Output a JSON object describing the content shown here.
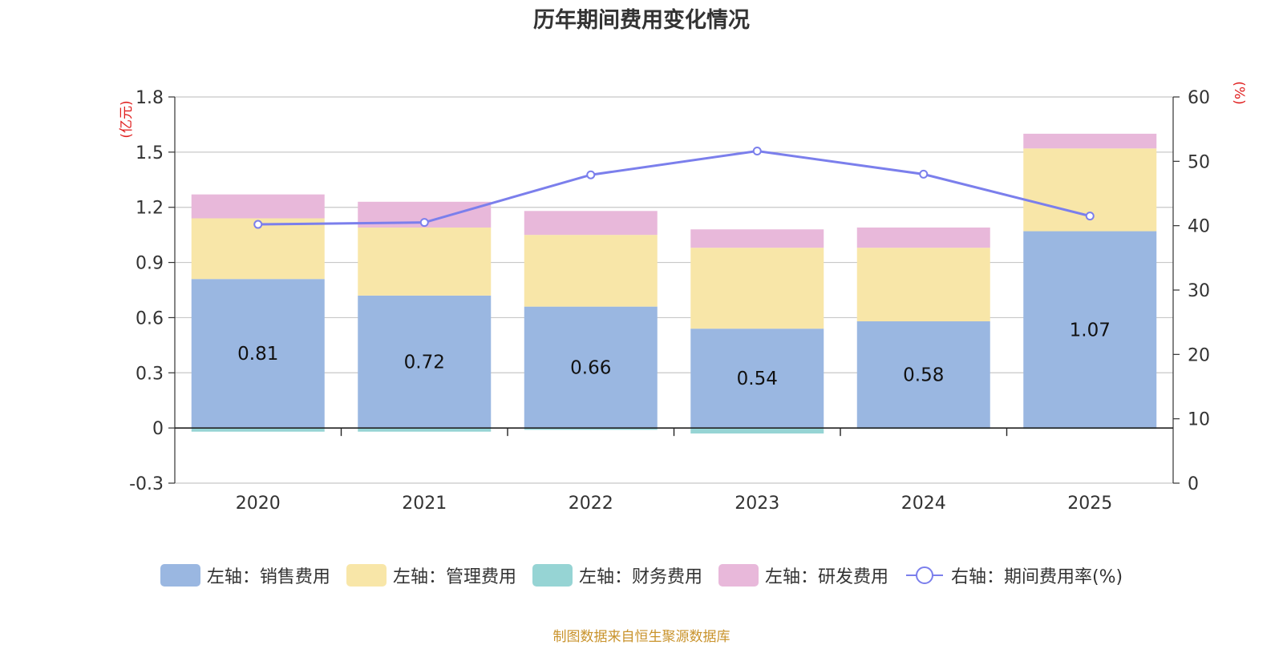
{
  "chart_data": {
    "type": "bar",
    "title": "历年期间费用变化情况",
    "categories": [
      "2020",
      "2021",
      "2022",
      "2023",
      "2024",
      "2025"
    ],
    "left_axis": {
      "unit_label": "(亿元)",
      "ylim": [
        -0.3,
        1.8
      ],
      "ticks": [
        -0.3,
        0,
        0.3,
        0.6,
        0.9,
        1.2,
        1.5,
        1.8
      ],
      "tick_labels": [
        "-0.3",
        "0",
        "0.3",
        "0.6",
        "0.9",
        "1.2",
        "1.5",
        "1.8"
      ]
    },
    "right_axis": {
      "unit_label": "(%)",
      "ylim": [
        0,
        60
      ],
      "ticks": [
        0,
        10,
        20,
        30,
        40,
        50,
        60
      ],
      "tick_labels": [
        "0",
        "10",
        "20",
        "30",
        "40",
        "50",
        "60"
      ]
    },
    "series": [
      {
        "name": "左轴：销售费用",
        "type": "bar",
        "axis": "left",
        "color": "#9ab7e1",
        "values": [
          0.81,
          0.72,
          0.66,
          0.54,
          0.58,
          1.07
        ],
        "data_labels": [
          "0.81",
          "0.72",
          "0.66",
          "0.54",
          "0.58",
          "1.07"
        ]
      },
      {
        "name": "左轴：管理费用",
        "type": "bar",
        "axis": "left",
        "color": "#f8e6a8",
        "values": [
          0.33,
          0.37,
          0.39,
          0.44,
          0.4,
          0.45
        ]
      },
      {
        "name": "左轴：财务费用",
        "type": "bar",
        "axis": "left",
        "color": "#96d4d4",
        "values": [
          -0.02,
          -0.02,
          -0.01,
          -0.03,
          -0.005,
          -0.005
        ]
      },
      {
        "name": "左轴：研发费用",
        "type": "bar",
        "axis": "left",
        "color": "#e8b8da",
        "values": [
          0.13,
          0.14,
          0.13,
          0.1,
          0.11,
          0.08
        ]
      },
      {
        "name": "右轴：期间费用率(%)",
        "type": "line",
        "axis": "right",
        "color": "#7b7fec",
        "values": [
          40.2,
          40.5,
          47.9,
          51.6,
          48.0,
          41.5
        ]
      }
    ],
    "legend_position": "bottom",
    "grid": true
  },
  "source_text": "制图数据来自恒生聚源数据库"
}
